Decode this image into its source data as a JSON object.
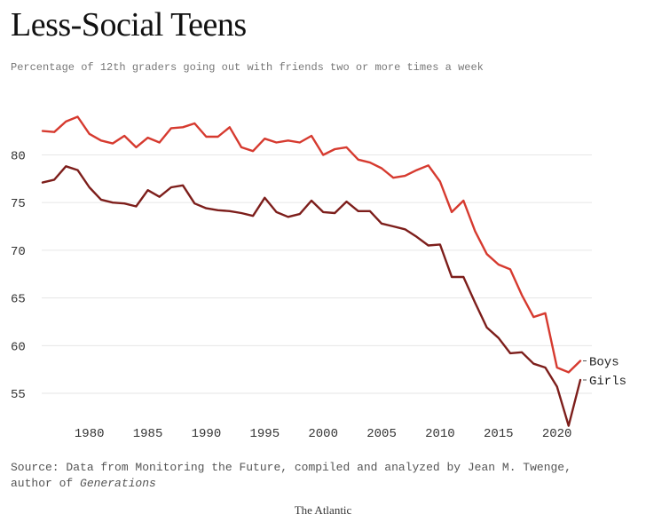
{
  "header": {
    "title": "Less-Social Teens",
    "subtitle": "Percentage of 12th graders going out with friends two or more times a week"
  },
  "footer": {
    "source_prefix": "Source: Data from Monitoring the Future, compiled and analyzed by Jean M. Twenge,",
    "source_line2_prefix": "author of ",
    "source_book": "Generations",
    "brand": "The Atlantic"
  },
  "colors": {
    "boys": "#d63a2f",
    "girls": "#7d1e1b",
    "grid": "#e6e6e6",
    "tick_text": "#333333"
  },
  "chart_data": {
    "type": "line",
    "title": "Less-Social Teens",
    "subtitle": "Percentage of 12th graders going out with friends two or more times a week",
    "xlabel": "",
    "ylabel": "",
    "xlim": [
      1976,
      2022
    ],
    "ylim": [
      51,
      86
    ],
    "grid": true,
    "x_ticks": [
      1980,
      1985,
      1990,
      1995,
      2000,
      2005,
      2010,
      2015,
      2020
    ],
    "y_ticks": [
      55,
      60,
      65,
      70,
      75,
      80
    ],
    "x": [
      1976,
      1977,
      1978,
      1979,
      1980,
      1981,
      1982,
      1983,
      1984,
      1985,
      1986,
      1987,
      1988,
      1989,
      1990,
      1991,
      1992,
      1993,
      1994,
      1995,
      1996,
      1997,
      1998,
      1999,
      2000,
      2001,
      2002,
      2003,
      2004,
      2005,
      2006,
      2007,
      2008,
      2009,
      2010,
      2011,
      2012,
      2013,
      2014,
      2015,
      2016,
      2017,
      2018,
      2019,
      2020,
      2021,
      2022
    ],
    "series": [
      {
        "name": "Boys",
        "label": "Boys",
        "values": [
          82.5,
          82.4,
          83.5,
          84.0,
          82.2,
          81.5,
          81.2,
          82.0,
          80.8,
          81.8,
          81.3,
          82.8,
          82.9,
          83.3,
          81.9,
          81.9,
          82.9,
          80.8,
          80.4,
          81.7,
          81.3,
          81.5,
          81.3,
          82.0,
          80.0,
          80.6,
          80.8,
          79.5,
          79.2,
          78.6,
          77.6,
          77.8,
          78.4,
          78.9,
          77.2,
          74.0,
          75.2,
          72.0,
          69.6,
          68.5,
          68.0,
          65.3,
          63.0,
          63.4,
          57.7,
          57.2,
          58.4
        ]
      },
      {
        "name": "Girls",
        "label": "Girls",
        "values": [
          77.1,
          77.4,
          78.8,
          78.4,
          76.6,
          75.3,
          75.0,
          74.9,
          74.6,
          76.3,
          75.6,
          76.6,
          76.8,
          74.9,
          74.4,
          74.2,
          74.1,
          73.9,
          73.6,
          75.5,
          74.0,
          73.5,
          73.8,
          75.2,
          74.0,
          73.9,
          75.1,
          74.1,
          74.1,
          72.8,
          72.5,
          72.2,
          71.4,
          70.5,
          70.6,
          67.2,
          67.2,
          64.5,
          61.9,
          60.8,
          59.2,
          59.3,
          58.1,
          57.7,
          55.7,
          51.6,
          56.4
        ]
      }
    ]
  }
}
